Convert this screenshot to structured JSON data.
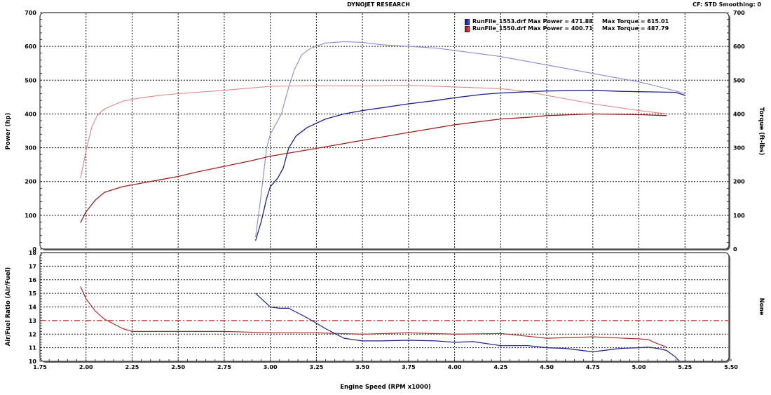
{
  "header": {
    "title": "DYNOJET RESEARCH",
    "correction": "CF: STD  Smoothing: 0"
  },
  "legend": [
    {
      "swatch": "#1a1aff",
      "file": "RunFile_1553.drf Max Power = 471.88",
      "torque": "Max Torque = 615.01"
    },
    {
      "swatch": "#e51c1c",
      "file": "RunFile_1550.drf Max Power = 400.71",
      "torque": "Max Torque = 487.79"
    }
  ],
  "chart_data": [
    {
      "type": "line",
      "title": "DYNOJET RESEARCH",
      "xlabel": "Engine Speed (RPM x1000)",
      "ylabel": "Power (hp)",
      "y2label": "Torque (ft-lbs)",
      "xlim": [
        1.75,
        5.5
      ],
      "ylim": [
        0,
        700
      ],
      "y2lim": [
        0,
        700
      ],
      "grid": true,
      "x_ticks": [
        "1.75",
        "2.00",
        "2.25",
        "2.50",
        "2.75",
        "3.00",
        "3.25",
        "3.50",
        "3.75",
        "4.00",
        "4.25",
        "4.50",
        "4.75",
        "5.00",
        "5.25",
        "5.50"
      ],
      "y_ticks": [
        "0",
        "100",
        "200",
        "300",
        "400",
        "500",
        "600",
        "700"
      ],
      "legend_position": "top-right",
      "series": [
        {
          "name": "RunFile_1553.drf Power (hp)",
          "color": "#1f1f8f",
          "width": 1.3,
          "x": [
            2.92,
            2.95,
            2.98,
            3.0,
            3.04,
            3.07,
            3.1,
            3.14,
            3.2,
            3.3,
            3.4,
            3.5,
            3.6,
            3.75,
            3.9,
            4.0,
            4.15,
            4.25,
            4.4,
            4.5,
            4.75,
            4.9,
            5.0,
            5.1,
            5.2,
            5.25
          ],
          "y": [
            25,
            80,
            150,
            185,
            210,
            240,
            300,
            335,
            360,
            385,
            400,
            410,
            418,
            430,
            440,
            448,
            458,
            462,
            466,
            468,
            470,
            467,
            466,
            465,
            464,
            455
          ]
        },
        {
          "name": "RunFile_1553.drf Torque (ft-lbs)",
          "color": "#8a8ad8",
          "width": 1.1,
          "x": [
            2.92,
            2.95,
            2.98,
            3.0,
            3.03,
            3.06,
            3.1,
            3.13,
            3.17,
            3.22,
            3.3,
            3.4,
            3.5,
            3.6,
            3.75,
            3.9,
            4.0,
            4.25,
            4.5,
            4.75,
            5.0,
            5.1,
            5.2,
            5.25
          ],
          "y": [
            35,
            160,
            300,
            340,
            370,
            400,
            480,
            530,
            575,
            595,
            610,
            614,
            612,
            605,
            600,
            595,
            588,
            570,
            545,
            520,
            495,
            482,
            468,
            460
          ]
        },
        {
          "name": "RunFile_1550.drf Power (hp)",
          "color": "#a02020",
          "width": 1.3,
          "x": [
            1.97,
            2.0,
            2.05,
            2.1,
            2.2,
            2.3,
            2.4,
            2.5,
            2.6,
            2.75,
            2.9,
            3.0,
            3.25,
            3.5,
            3.75,
            4.0,
            4.25,
            4.4,
            4.5,
            4.75,
            5.0,
            5.15
          ],
          "y": [
            78,
            110,
            145,
            168,
            185,
            195,
            205,
            215,
            228,
            245,
            262,
            275,
            298,
            322,
            345,
            368,
            385,
            390,
            395,
            400,
            398,
            395
          ]
        },
        {
          "name": "RunFile_1550.drf Torque (ft-lbs)",
          "color": "#dd8888",
          "width": 1.1,
          "x": [
            1.97,
            2.0,
            2.03,
            2.06,
            2.1,
            2.2,
            2.3,
            2.4,
            2.5,
            2.75,
            3.0,
            3.25,
            3.5,
            3.75,
            4.0,
            4.25,
            4.4,
            4.5,
            4.75,
            5.0,
            5.15
          ],
          "y": [
            210,
            290,
            360,
            395,
            415,
            438,
            448,
            455,
            460,
            470,
            482,
            484,
            483,
            485,
            480,
            475,
            465,
            455,
            430,
            410,
            400
          ]
        }
      ]
    },
    {
      "type": "line",
      "xlabel": "Engine Speed (RPM x1000)",
      "ylabel": "Air/Fuel Ratio (Air/Fuel)",
      "y2label": "None",
      "xlim": [
        1.75,
        5.5
      ],
      "ylim": [
        10,
        18
      ],
      "grid": true,
      "y_ticks": [
        "10",
        "11",
        "12",
        "13",
        "14",
        "15",
        "16",
        "17",
        "18"
      ],
      "reference_line": {
        "y": 13,
        "color": "#c02020",
        "style": "dash-dot"
      },
      "series": [
        {
          "name": "RunFile_1553.drf AFR",
          "color": "#1f1f8f",
          "width": 1.2,
          "x": [
            2.92,
            2.96,
            3.0,
            3.05,
            3.1,
            3.2,
            3.3,
            3.4,
            3.5,
            3.6,
            3.75,
            3.9,
            4.0,
            4.1,
            4.25,
            4.4,
            4.5,
            4.6,
            4.75,
            4.9,
            5.0,
            5.05,
            5.1,
            5.15,
            5.2,
            5.22
          ],
          "y": [
            15.0,
            14.5,
            14.0,
            13.9,
            13.9,
            13.2,
            12.4,
            11.7,
            11.5,
            11.5,
            11.55,
            11.5,
            11.4,
            11.45,
            11.15,
            11.15,
            11.0,
            10.95,
            10.7,
            10.95,
            11.0,
            11.05,
            10.95,
            10.8,
            10.3,
            10.0
          ]
        },
        {
          "name": "RunFile_1550.drf AFR",
          "color": "#b02a2a",
          "width": 1.2,
          "x": [
            1.97,
            2.0,
            2.05,
            2.1,
            2.2,
            2.25,
            2.5,
            2.75,
            3.0,
            3.25,
            3.5,
            3.75,
            4.0,
            4.25,
            4.5,
            4.75,
            5.0,
            5.05,
            5.1,
            5.15
          ],
          "y": [
            15.5,
            14.6,
            13.7,
            13.1,
            12.4,
            12.2,
            12.2,
            12.2,
            12.1,
            12.1,
            12.0,
            12.1,
            12.0,
            12.05,
            11.7,
            11.8,
            11.65,
            11.6,
            11.3,
            11.05
          ]
        }
      ]
    }
  ]
}
